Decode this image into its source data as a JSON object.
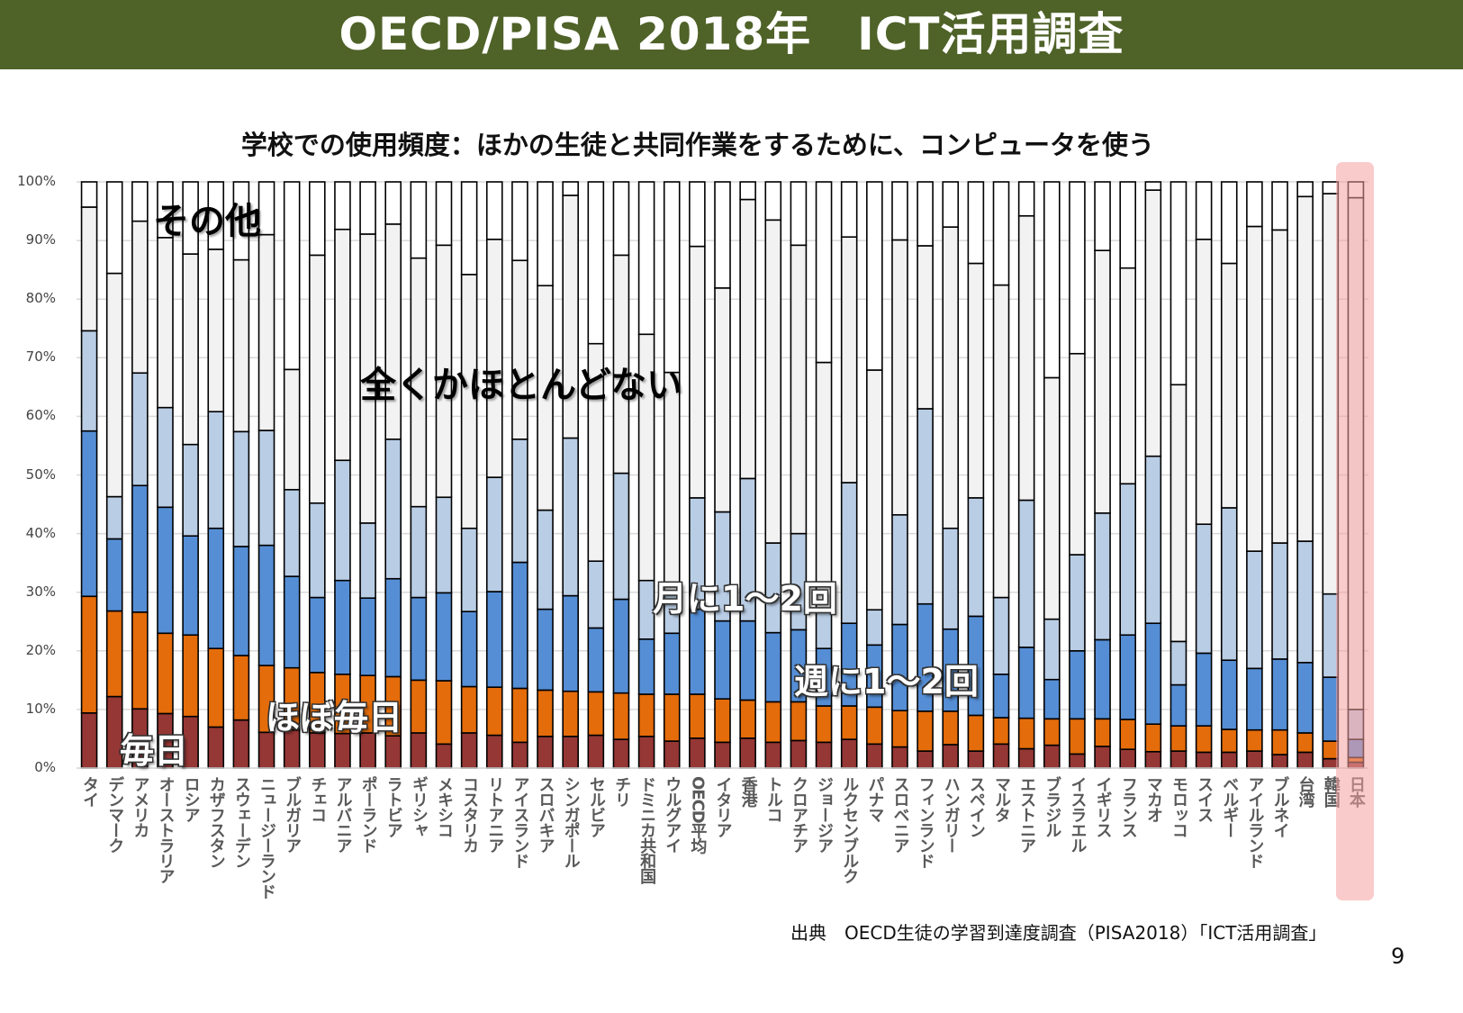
{
  "header": {
    "title": "OECD/PISA 2018年　ICT活用調査"
  },
  "footer": {
    "source": "出典　OECD生徒の学習到達度調査（PISA2018）「ICT活用調査」",
    "page_number": "9"
  },
  "chart_data": {
    "type": "bar",
    "stacked": true,
    "normalized_percent": true,
    "title": "学校での使用頻度：ほかの生徒と共同作業をするために、コンピュータを使う",
    "ylim": [
      0,
      100
    ],
    "y_ticks": [
      "0%",
      "10%",
      "20%",
      "30%",
      "40%",
      "50%",
      "60%",
      "70%",
      "80%",
      "90%",
      "100%"
    ],
    "grid": true,
    "highlight_category": "日本",
    "highlight_color": "#f6a0a0",
    "categories": [
      "タイ",
      "デンマーク",
      "アメリカ",
      "オーストラリア",
      "ロシア",
      "カザフスタン",
      "スウェーデン",
      "ニュージーランド",
      "ブルガリア",
      "チェコ",
      "アルバニア",
      "ポーランド",
      "ラトビア",
      "ギリシャ",
      "メキシコ",
      "コスタリカ",
      "リトアニア",
      "アイスランド",
      "スロバキア",
      "シンガポール",
      "セルビア",
      "チリ",
      "ドミニカ共和国",
      "ウルグアイ",
      "OECD平均",
      "イタリア",
      "香港",
      "トルコ",
      "クロアチア",
      "ジョージア",
      "ルクセンブルク",
      "パナマ",
      "スロベニア",
      "フィンランド",
      "ハンガリー",
      "スペイン",
      "マルタ",
      "エストニア",
      "ブラジル",
      "イスラエル",
      "イギリス",
      "フランス",
      "マカオ",
      "モロッコ",
      "スイス",
      "ベルギー",
      "アイルランド",
      "ブルネイ",
      "台湾",
      "韓国",
      "日本"
    ],
    "series": [
      {
        "name": "毎日",
        "color": "#953735",
        "values": [
          9.4,
          12.2,
          10.1,
          9.3,
          8.8,
          7.0,
          8.2,
          6.1,
          6.5,
          6.0,
          5.9,
          6.0,
          5.5,
          6.0,
          4.1,
          6.0,
          5.6,
          4.4,
          5.4,
          5.4,
          5.6,
          4.9,
          5.4,
          4.6,
          5.1,
          4.4,
          5.1,
          4.4,
          4.7,
          4.4,
          4.9,
          4.1,
          3.6,
          2.9,
          4.0,
          2.9,
          4.1,
          3.3,
          3.9,
          2.4,
          3.7,
          3.2,
          2.8,
          2.9,
          2.7,
          2.7,
          2.9,
          2.3,
          2.7,
          1.6,
          1.0
        ]
      },
      {
        "name": "ほぼ毎日",
        "color": "#e46c0a",
        "values": [
          19.9,
          14.6,
          16.5,
          13.7,
          13.9,
          13.4,
          11.0,
          11.4,
          10.6,
          10.3,
          10.1,
          9.8,
          10.1,
          9.0,
          10.8,
          7.9,
          8.2,
          9.2,
          7.9,
          7.7,
          7.4,
          7.9,
          7.2,
          8.0,
          7.5,
          7.4,
          6.5,
          6.9,
          6.6,
          6.2,
          5.7,
          6.3,
          6.2,
          6.8,
          5.7,
          6.1,
          4.5,
          5.2,
          4.5,
          6.0,
          4.7,
          5.1,
          4.7,
          4.3,
          4.5,
          3.9,
          3.6,
          4.2,
          3.3,
          3.0,
          0.8
        ]
      },
      {
        "name": "週に1～2回",
        "color": "#558ed5",
        "values": [
          28.2,
          12.3,
          21.6,
          21.5,
          16.9,
          20.5,
          18.6,
          20.5,
          15.6,
          12.8,
          16.0,
          13.2,
          16.7,
          14.1,
          15.0,
          12.8,
          16.3,
          21.5,
          13.8,
          16.3,
          10.9,
          16.0,
          9.4,
          10.4,
          14.5,
          13.3,
          13.5,
          11.8,
          12.3,
          9.8,
          14.1,
          10.6,
          14.7,
          18.3,
          14.0,
          16.9,
          7.4,
          12.1,
          6.7,
          11.6,
          13.5,
          14.4,
          17.2,
          7.0,
          12.4,
          11.8,
          10.5,
          12.1,
          12.0,
          10.9,
          3.1
        ]
      },
      {
        "name": "月に1～2回",
        "color": "#b9cde5",
        "values": [
          17.1,
          7.2,
          19.2,
          17.0,
          15.6,
          19.9,
          19.6,
          19.6,
          14.8,
          16.1,
          20.5,
          12.8,
          23.8,
          15.5,
          16.3,
          14.2,
          19.5,
          21.0,
          16.9,
          26.9,
          11.4,
          21.5,
          10.0,
          7.0,
          19.0,
          18.6,
          24.3,
          15.3,
          16.4,
          6.6,
          24.0,
          6.0,
          18.7,
          33.3,
          17.2,
          20.2,
          13.1,
          25.1,
          10.3,
          16.4,
          21.6,
          25.8,
          28.5,
          7.4,
          22.0,
          26.0,
          20.0,
          19.8,
          20.7,
          14.2,
          5.1
        ]
      },
      {
        "name": "全くかほとんどない",
        "color": "#f2f2f2",
        "values": [
          21.1,
          38.1,
          25.9,
          29.0,
          32.5,
          27.7,
          29.3,
          33.4,
          20.5,
          42.3,
          39.4,
          49.3,
          36.7,
          42.4,
          43.0,
          43.3,
          40.6,
          30.5,
          38.3,
          41.4,
          37.1,
          37.2,
          42.0,
          37.5,
          42.9,
          38.2,
          47.6,
          55.1,
          49.2,
          42.2,
          41.9,
          40.9,
          46.9,
          27.8,
          51.4,
          40.0,
          53.3,
          48.5,
          41.2,
          34.3,
          44.8,
          36.8,
          45.4,
          43.8,
          48.6,
          41.7,
          55.4,
          53.4,
          58.8,
          68.3,
          87.3
        ]
      },
      {
        "name": "その他",
        "color": "#ffffff",
        "values": [
          4.3,
          15.6,
          6.7,
          9.5,
          12.3,
          11.5,
          13.3,
          9.0,
          32.0,
          12.5,
          8.1,
          8.9,
          7.2,
          13.0,
          10.8,
          15.8,
          9.8,
          13.4,
          17.7,
          2.3,
          27.6,
          12.5,
          26.0,
          32.5,
          11.0,
          18.1,
          3.0,
          6.5,
          10.8,
          30.8,
          9.4,
          32.1,
          9.9,
          10.9,
          7.7,
          13.9,
          17.6,
          5.8,
          33.4,
          29.3,
          11.7,
          14.7,
          1.4,
          34.6,
          9.8,
          13.9,
          7.6,
          8.2,
          2.5,
          2.0,
          2.7
        ]
      }
    ]
  }
}
